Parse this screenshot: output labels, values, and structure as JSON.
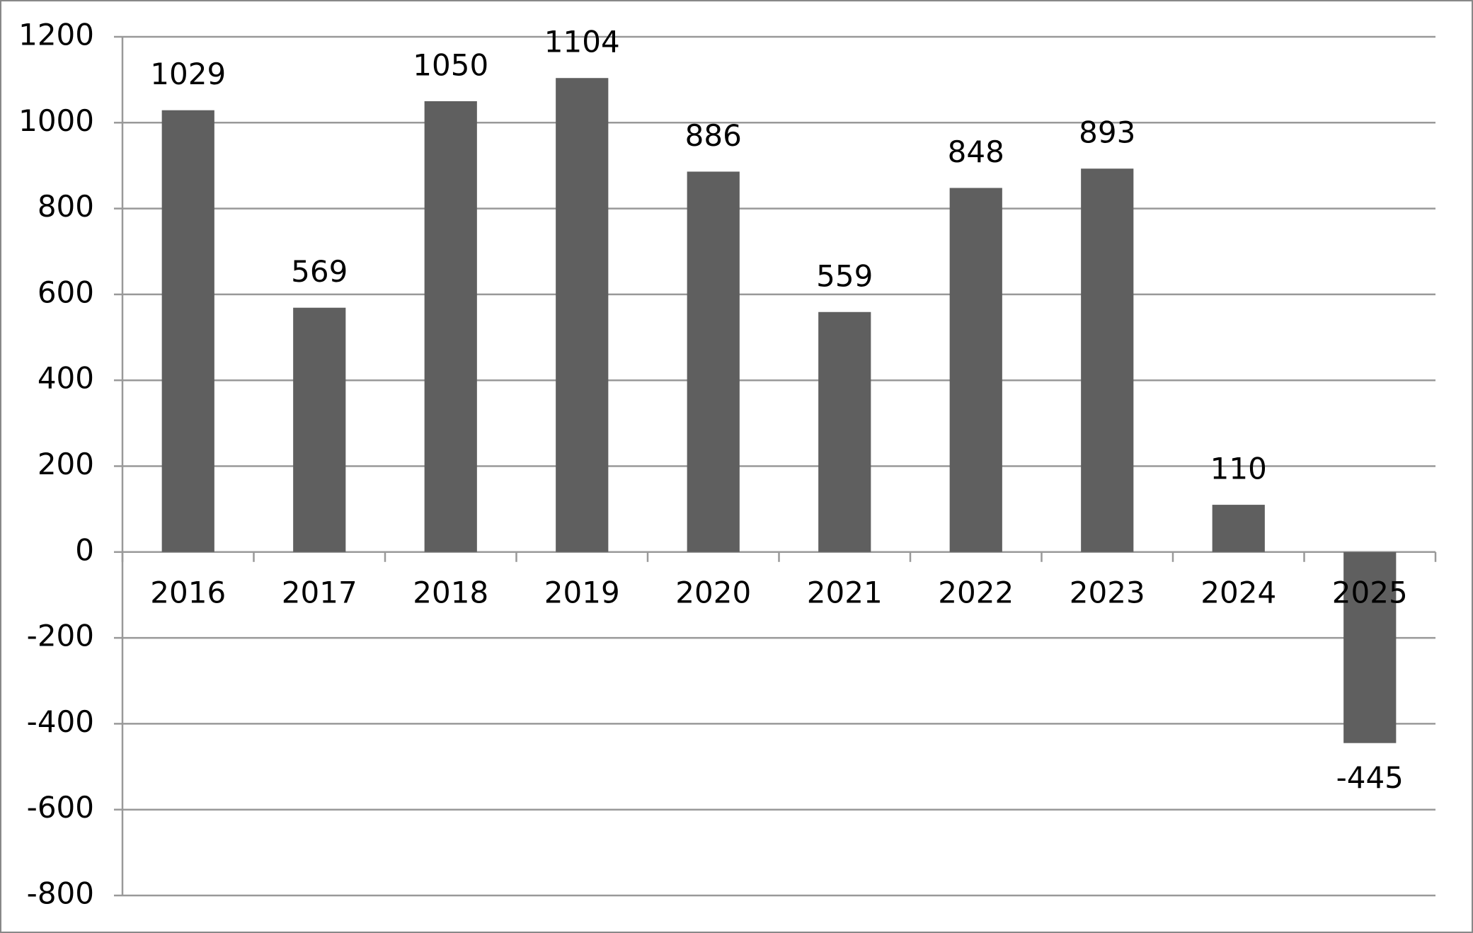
{
  "chart_data": {
    "type": "bar",
    "categories": [
      "2016",
      "2017",
      "2018",
      "2019",
      "2020",
      "2021",
      "2022",
      "2023",
      "2024",
      "2025"
    ],
    "values": [
      1029,
      569,
      1050,
      1104,
      886,
      559,
      848,
      893,
      110,
      -445
    ],
    "color": "#5f5f5f",
    "ylim": [
      -800,
      1200
    ],
    "yticks": [
      -800,
      -600,
      -400,
      -200,
      0,
      200,
      400,
      600,
      800,
      1000,
      1200
    ],
    "grid": true
  }
}
